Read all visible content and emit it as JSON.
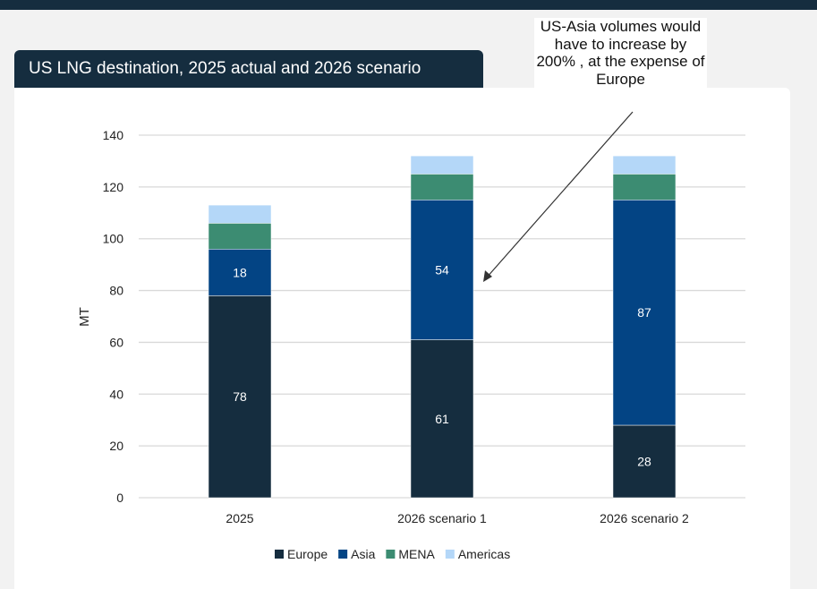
{
  "chart_data": {
    "type": "bar",
    "stacked": true,
    "title": "US LNG destination, 2025 actual and 2026 scenario",
    "xlabel": "",
    "ylabel": "MT",
    "ylim": [
      0,
      140
    ],
    "yticks": [
      0,
      20,
      40,
      60,
      80,
      100,
      120,
      140
    ],
    "grid": true,
    "legend_position": "bottom",
    "categories": [
      "2025",
      "2026 scenario 1",
      "2026 scenario 2"
    ],
    "series": [
      {
        "name": "Europe",
        "values": [
          78,
          61,
          28
        ],
        "color": "#152d3f",
        "labeled": true
      },
      {
        "name": "Asia",
        "values": [
          18,
          54,
          87
        ],
        "color": "#034484",
        "labeled": true
      },
      {
        "name": "MENA",
        "values": [
          10,
          10,
          10
        ],
        "color": "#3c8c72",
        "labeled": false
      },
      {
        "name": "Americas",
        "values": [
          7,
          7,
          7
        ],
        "color": "#b4d7f8",
        "labeled": false
      }
    ],
    "annotation": "US-Asia volumes would have to increase by 200% , at the expense of Europe"
  }
}
